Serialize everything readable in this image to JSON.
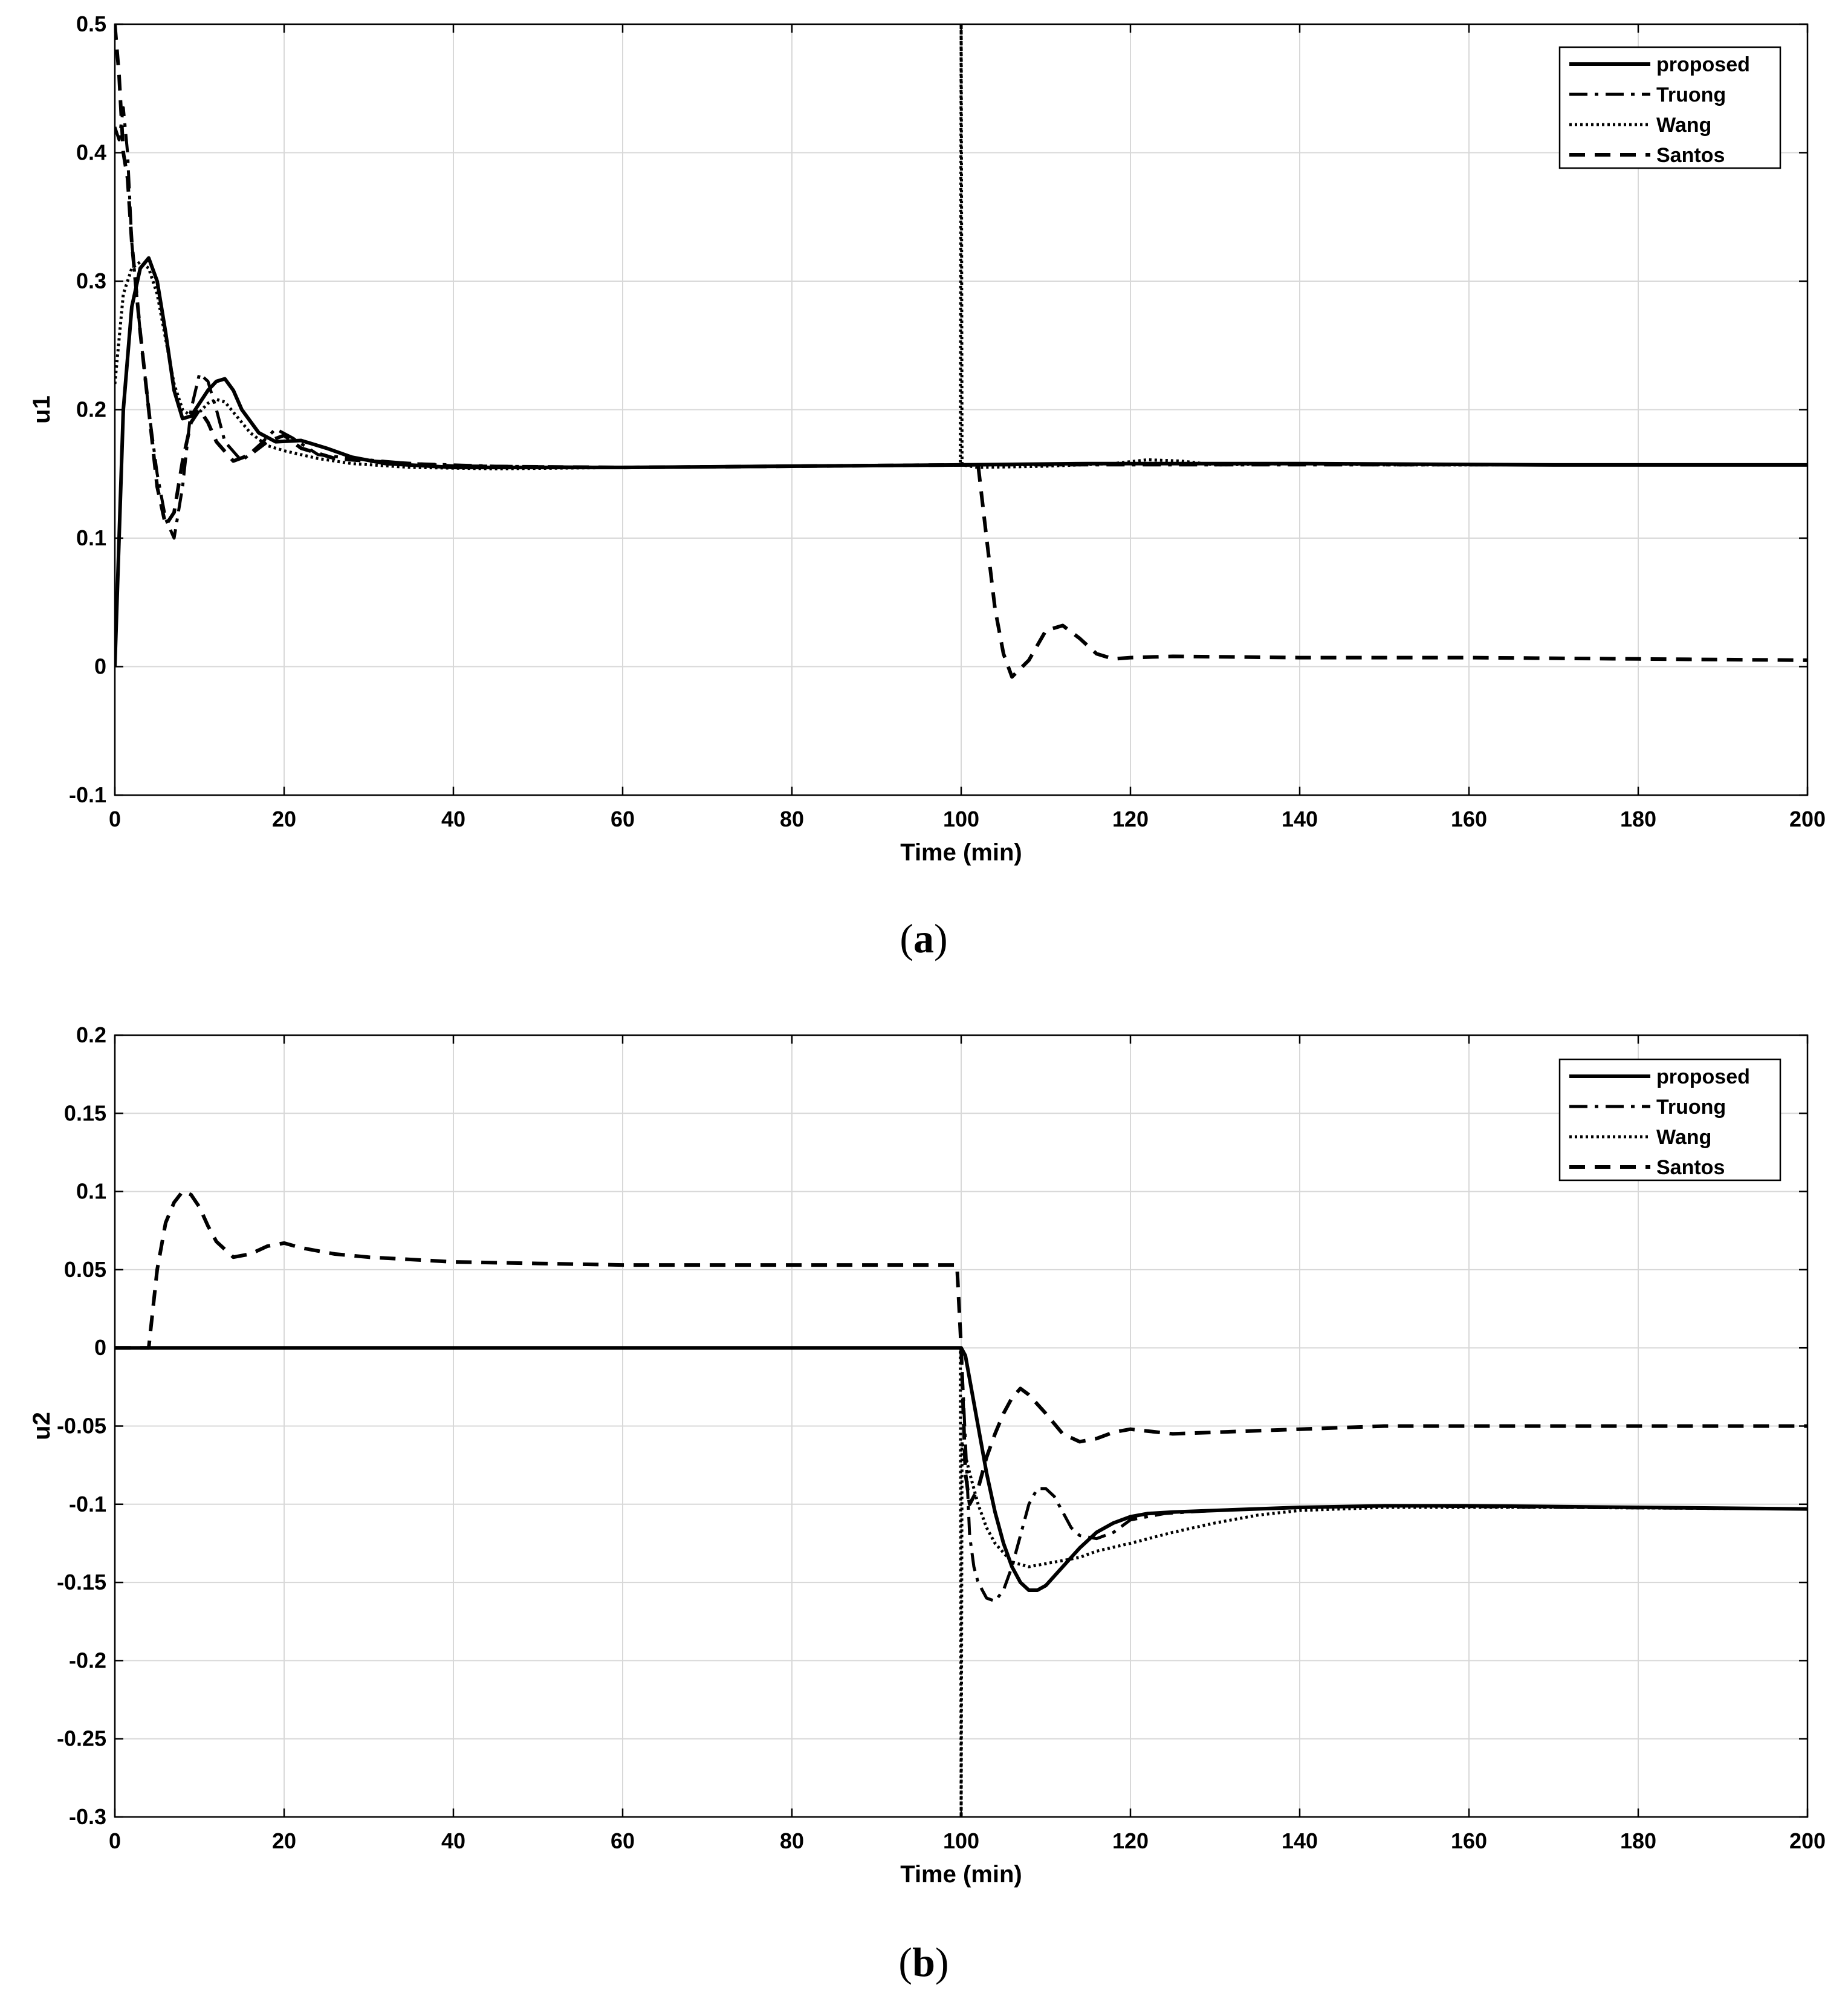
{
  "chart_data": [
    {
      "type": "line",
      "panel_label": "a",
      "xlabel": "Time (min)",
      "ylabel": "u1",
      "xlim": [
        0,
        200
      ],
      "ylim": [
        -0.1,
        0.5
      ],
      "xticks": [
        0,
        20,
        40,
        60,
        80,
        100,
        120,
        140,
        160,
        180,
        200
      ],
      "yticks": [
        -0.1,
        0,
        0.1,
        0.2,
        0.3,
        0.4,
        0.5
      ],
      "ytick_labels": [
        "-0.1",
        "0",
        "0.1",
        "0.2",
        "0.3",
        "0.4",
        "0.5"
      ],
      "grid": true,
      "legend": "top-right",
      "series": [
        {
          "name": "proposed",
          "style": "solid",
          "x": [
            0,
            1,
            2,
            3,
            4,
            5,
            6,
            7,
            8,
            9,
            10,
            11,
            12,
            13,
            14,
            15,
            17,
            19,
            22,
            25,
            28,
            32,
            40,
            60,
            80,
            100,
            115,
            140,
            170,
            200
          ],
          "y": [
            0,
            0.2,
            0.28,
            0.31,
            0.318,
            0.3,
            0.26,
            0.215,
            0.193,
            0.195,
            0.205,
            0.215,
            0.222,
            0.224,
            0.215,
            0.2,
            0.182,
            0.175,
            0.176,
            0.17,
            0.163,
            0.158,
            0.155,
            0.155,
            0.156,
            0.157,
            0.158,
            0.158,
            0.157,
            0.157
          ]
        },
        {
          "name": "Truong",
          "style": "dashdot",
          "x": [
            0,
            0.5,
            1,
            1.5,
            2,
            3,
            4,
            5,
            6,
            7,
            8,
            9,
            10,
            11,
            12,
            13,
            15,
            17,
            19,
            21,
            24,
            28,
            35,
            45,
            60,
            80,
            100,
            130,
            200
          ],
          "y": [
            0.42,
            0.41,
            0.435,
            0.4,
            0.33,
            0.26,
            0.2,
            0.15,
            0.115,
            0.1,
            0.14,
            0.2,
            0.228,
            0.222,
            0.2,
            0.175,
            0.16,
            0.172,
            0.185,
            0.178,
            0.165,
            0.162,
            0.158,
            0.156,
            0.155,
            0.156,
            0.157,
            0.157,
            0.157
          ]
        },
        {
          "name": "Wang",
          "style": "dotted",
          "x": [
            0,
            1,
            2,
            3,
            4,
            5,
            6,
            7,
            8,
            9,
            10,
            11,
            12,
            13,
            14,
            16,
            18,
            20,
            24,
            28,
            35,
            45,
            60,
            80,
            99.9,
            100,
            100.1,
            102,
            110,
            118,
            122,
            126,
            130,
            140,
            150,
            170,
            200
          ],
          "y": [
            0.22,
            0.29,
            0.31,
            0.315,
            0.31,
            0.29,
            0.255,
            0.22,
            0.2,
            0.195,
            0.198,
            0.205,
            0.208,
            0.206,
            0.198,
            0.182,
            0.172,
            0.168,
            0.162,
            0.158,
            0.155,
            0.154,
            0.155,
            0.156,
            0.157,
            0.5,
            0.157,
            0.155,
            0.156,
            0.158,
            0.161,
            0.16,
            0.157,
            0.158,
            0.157,
            0.157,
            0.157
          ]
        },
        {
          "name": "Santos",
          "style": "dashed",
          "x": [
            0,
            0.5,
            1,
            1.5,
            2,
            3,
            4,
            5,
            6,
            7,
            8,
            9,
            10,
            11,
            12,
            14,
            16,
            18,
            20,
            22,
            26,
            30,
            40,
            60,
            80,
            100,
            102,
            103,
            104,
            105,
            106,
            108,
            110,
            112,
            114,
            116,
            118,
            120,
            125,
            140,
            160,
            180,
            200
          ],
          "y": [
            0.5,
            0.46,
            0.4,
            0.38,
            0.33,
            0.26,
            0.2,
            0.14,
            0.11,
            0.12,
            0.16,
            0.19,
            0.2,
            0.19,
            0.175,
            0.16,
            0.165,
            0.175,
            0.18,
            0.17,
            0.162,
            0.16,
            0.156,
            0.155,
            0.156,
            0.157,
            0.157,
            0.1,
            0.045,
            0.01,
            -0.008,
            0.005,
            0.028,
            0.032,
            0.022,
            0.01,
            0.006,
            0.007,
            0.008,
            0.007,
            0.007,
            0.006,
            0.005
          ]
        }
      ]
    },
    {
      "type": "line",
      "panel_label": "b",
      "xlabel": "Time (min)",
      "ylabel": "u2",
      "xlim": [
        0,
        200
      ],
      "ylim": [
        -0.3,
        0.2
      ],
      "xticks": [
        0,
        20,
        40,
        60,
        80,
        100,
        120,
        140,
        160,
        180,
        200
      ],
      "yticks": [
        -0.3,
        -0.25,
        -0.2,
        -0.15,
        -0.1,
        -0.05,
        0,
        0.05,
        0.1,
        0.15,
        0.2
      ],
      "ytick_labels": [
        "-0.3",
        "-0.25",
        "-0.2",
        "-0.15",
        "-0.1",
        "-0.05",
        "0",
        "0.05",
        "0.1",
        "0.15",
        "0.2"
      ],
      "grid": true,
      "legend": "top-right",
      "series": [
        {
          "name": "proposed",
          "style": "solid",
          "x": [
            0,
            100,
            100.5,
            101,
            102,
            103,
            104,
            105,
            106,
            107,
            108,
            109,
            110,
            111,
            112,
            114,
            116,
            118,
            120,
            122,
            125,
            130,
            140,
            150,
            160,
            180,
            200
          ],
          "y": [
            0,
            0,
            -0.005,
            -0.02,
            -0.05,
            -0.08,
            -0.105,
            -0.125,
            -0.14,
            -0.15,
            -0.155,
            -0.155,
            -0.152,
            -0.146,
            -0.14,
            -0.128,
            -0.118,
            -0.112,
            -0.108,
            -0.106,
            -0.105,
            -0.104,
            -0.102,
            -0.101,
            -0.101,
            -0.102,
            -0.103
          ]
        },
        {
          "name": "Truong",
          "style": "dashdot",
          "x": [
            0,
            100,
            100.5,
            101,
            101.5,
            102,
            103,
            104,
            105,
            106,
            107,
            108,
            109,
            110,
            111,
            112,
            113,
            114,
            116,
            118,
            120,
            124,
            130,
            140,
            150,
            170,
            200
          ],
          "y": [
            0,
            0,
            -0.06,
            -0.12,
            -0.14,
            -0.15,
            -0.16,
            -0.162,
            -0.155,
            -0.14,
            -0.12,
            -0.1,
            -0.09,
            -0.09,
            -0.095,
            -0.105,
            -0.115,
            -0.12,
            -0.122,
            -0.118,
            -0.11,
            -0.106,
            -0.104,
            -0.102,
            -0.101,
            -0.102,
            -0.103
          ]
        },
        {
          "name": "Wang",
          "style": "dotted",
          "x": [
            0,
            99.9,
            100,
            100.1,
            101,
            102,
            103,
            104,
            106,
            108,
            110,
            112,
            114,
            116,
            120,
            125,
            130,
            135,
            140,
            150,
            170,
            200
          ],
          "y": [
            0,
            0,
            -0.3,
            -0.06,
            -0.08,
            -0.1,
            -0.115,
            -0.125,
            -0.137,
            -0.14,
            -0.138,
            -0.136,
            -0.134,
            -0.13,
            -0.125,
            -0.118,
            -0.112,
            -0.107,
            -0.104,
            -0.102,
            -0.102,
            -0.103
          ]
        },
        {
          "name": "Santos",
          "style": "dashed",
          "x": [
            0,
            4,
            5,
            6,
            7,
            8,
            9,
            10,
            11,
            12,
            14,
            16,
            18,
            20,
            22,
            26,
            30,
            40,
            50,
            60,
            80,
            99.5,
            100,
            100.5,
            101,
            102,
            103,
            104,
            105,
            106,
            107,
            108,
            110,
            112,
            114,
            116,
            118,
            120,
            125,
            130,
            140,
            150,
            160,
            180,
            200
          ],
          "y": [
            0,
            0,
            0.05,
            0.08,
            0.093,
            0.1,
            0.098,
            0.09,
            0.078,
            0.068,
            0.058,
            0.06,
            0.065,
            0.067,
            0.064,
            0.06,
            0.058,
            0.055,
            0.054,
            0.053,
            0.053,
            0.053,
            0,
            -0.08,
            -0.1,
            -0.09,
            -0.07,
            -0.055,
            -0.042,
            -0.032,
            -0.026,
            -0.03,
            -0.042,
            -0.055,
            -0.06,
            -0.058,
            -0.054,
            -0.052,
            -0.055,
            -0.054,
            -0.052,
            -0.05,
            -0.05,
            -0.05,
            -0.05
          ]
        }
      ]
    }
  ]
}
